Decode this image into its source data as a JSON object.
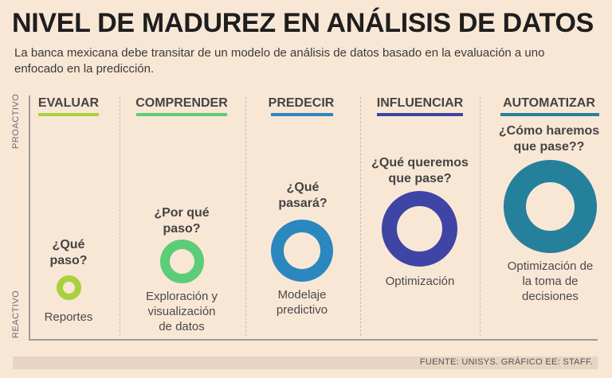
{
  "title": "NIVEL DE MADUREZ EN ANÁLISIS DE DATOS",
  "subtitle": "La banca mexicana debe transitar de un modelo de análisis de datos basado en la evaluación a uno enfocado en la predicción.",
  "axis": {
    "top_label": "PROACTIVO",
    "bottom_label": "REACTIVO"
  },
  "stages": [
    {
      "name": "EVALUAR",
      "question": "¿Qué paso?",
      "label": "Reportes",
      "color": "#a7d13f"
    },
    {
      "name": "COMPRENDER",
      "question": "¿Por qué paso?",
      "label": "Exploración y visualización de datos",
      "color": "#5dcc78"
    },
    {
      "name": "PREDECIR",
      "question": "¿Qué pasará?",
      "label": "Modelaje predictivo",
      "color": "#2a88bf"
    },
    {
      "name": "INFLUENCIAR",
      "question": "¿Qué queremos que pase?",
      "label": "Optimización",
      "color": "#3f45a5"
    },
    {
      "name": "AUTOMATIZAR",
      "question": "¿Cómo haremos que pase??",
      "label": "Optimización de la toma de decisiones",
      "color": "#25809b"
    }
  ],
  "source": "FUENTE: UNISYS. GRÁFICO EE: STAFF."
}
